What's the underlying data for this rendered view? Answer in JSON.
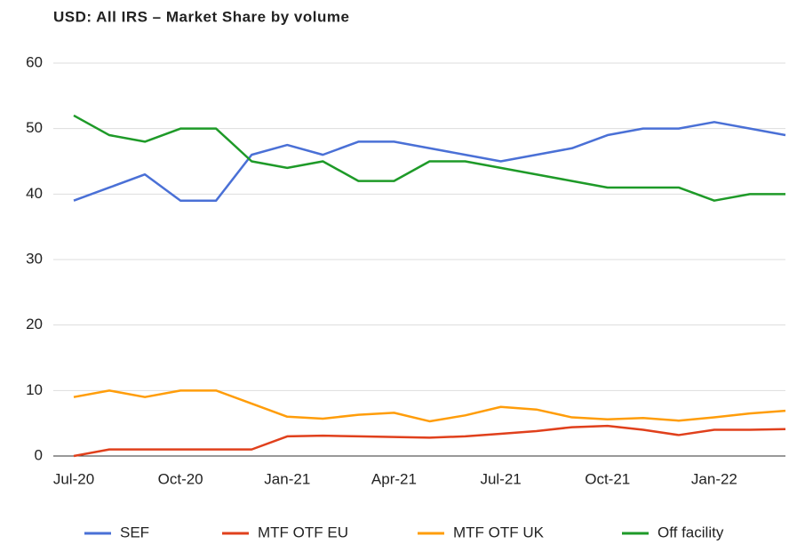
{
  "chart_data": {
    "type": "line",
    "title": "USD: All IRS – Market Share by volume",
    "categories": [
      "Jul-20",
      null,
      null,
      "Oct-20",
      null,
      null,
      "Jan-21",
      null,
      null,
      "Apr-21",
      null,
      null,
      "Jul-21",
      null,
      null,
      "Oct-21",
      null,
      null,
      "Jan-22",
      null,
      null
    ],
    "series": [
      {
        "name": "SEF",
        "color": "#4a70d6",
        "values": [
          39,
          41,
          43,
          39,
          39,
          46,
          47.5,
          46,
          48,
          48,
          47,
          46,
          45,
          46,
          47,
          49,
          50,
          50,
          51,
          50,
          49
        ]
      },
      {
        "name": "MTF OTF EU",
        "color": "#e0401c",
        "values": [
          0,
          1,
          1,
          1,
          1,
          1,
          3,
          3.1,
          3,
          2.9,
          2.8,
          3,
          3.4,
          3.8,
          4.4,
          4.6,
          4,
          3.2,
          4,
          4,
          4.1
        ]
      },
      {
        "name": "MTF OTF UK",
        "color": "#ff9d0a",
        "values": [
          9,
          10,
          9,
          10,
          10,
          8,
          6,
          5.7,
          6.3,
          6.6,
          5.3,
          6.2,
          7.5,
          7.1,
          5.9,
          5.6,
          5.8,
          5.4,
          5.9,
          6.5,
          6.9
        ]
      },
      {
        "name": "Off facility",
        "color": "#1e9a28",
        "values": [
          52,
          49,
          48,
          50,
          50,
          45,
          44,
          45,
          42,
          42,
          45,
          45,
          44,
          43,
          42,
          41,
          41,
          41,
          39,
          40,
          40
        ]
      }
    ],
    "ylim": [
      0,
      60
    ],
    "yticks": [
      0,
      10,
      20,
      30,
      40,
      50,
      60
    ],
    "grid": true,
    "legend": "bottom"
  }
}
